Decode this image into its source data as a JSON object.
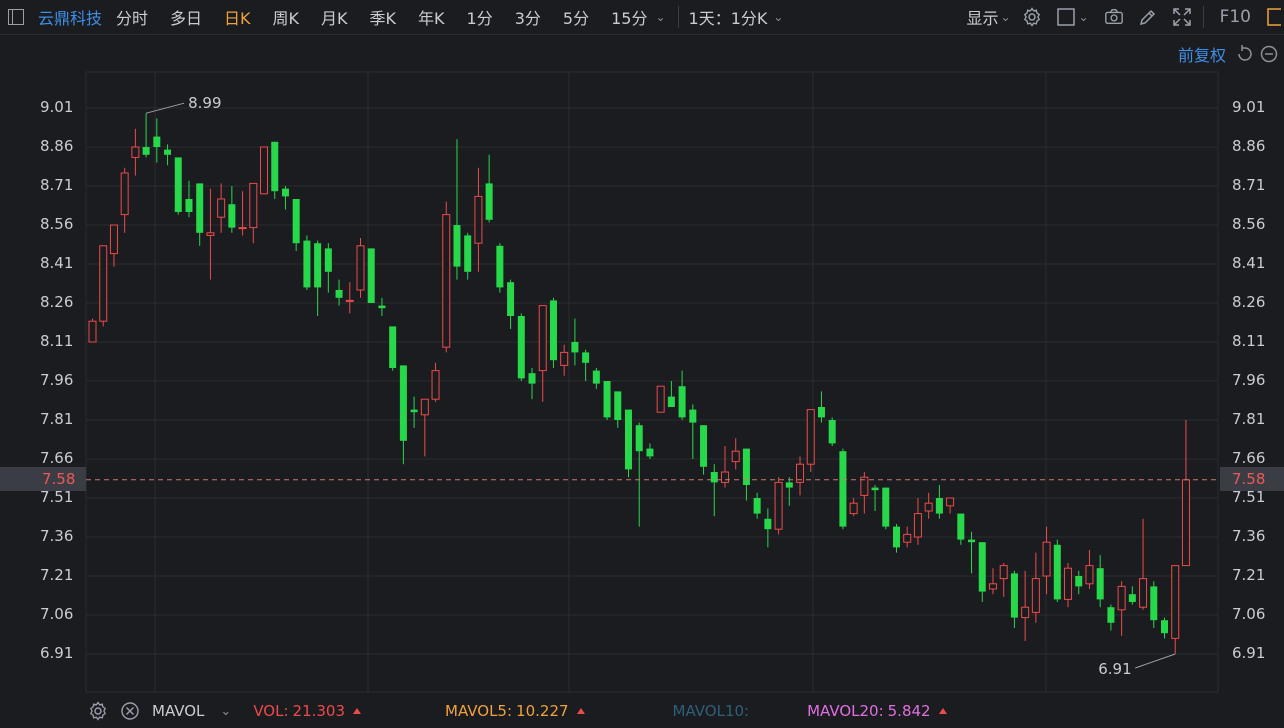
{
  "toolbar": {
    "stock_name": "云鼎科技",
    "periods": [
      "分时",
      "多日",
      "日K",
      "周K",
      "月K",
      "季K",
      "年K",
      "1分",
      "3分",
      "5分",
      "15分"
    ],
    "active_period": "日K",
    "range_select": "1天：1分K",
    "show_label": "显示",
    "f10_label": "F10"
  },
  "adjust_label": "前复权",
  "colors": {
    "up": "#ee4a4a",
    "down": "#27d84b",
    "accent": "#f0a33a",
    "link": "#3d8fe6",
    "background": "#1b1c20"
  },
  "icons": [
    "panel-toggle-icon",
    "chevron-down-icon",
    "gear-icon",
    "square-icon",
    "camera-icon",
    "pencil-icon",
    "fullscreen-icon",
    "reset-icon",
    "zoom-out-icon"
  ],
  "chart_data": {
    "type": "candlestick",
    "ylim": [
      6.855,
      9.095
    ],
    "y_ticks": [
      9.01,
      8.86,
      8.71,
      8.56,
      8.41,
      8.26,
      8.11,
      7.96,
      7.81,
      7.66,
      7.51,
      7.36,
      7.21,
      7.06,
      6.91
    ],
    "y_tick_labels": [
      "9.01",
      "8.86",
      "8.71",
      "8.56",
      "8.41",
      "8.26",
      "8.11",
      "7.96",
      "7.81",
      "7.66",
      "7.51",
      "7.36",
      "7.21",
      "7.06",
      "6.91"
    ],
    "current_price": 7.58,
    "current_price_label": "7.58",
    "high_annotation": {
      "value": 8.99,
      "label": "8.99"
    },
    "low_annotation": {
      "value": 6.91,
      "label": "6.91"
    },
    "candles": [
      [
        8.11,
        8.19,
        8.2,
        8.11
      ],
      [
        8.19,
        8.48,
        8.48,
        8.17
      ],
      [
        8.45,
        8.56,
        8.56,
        8.4
      ],
      [
        8.6,
        8.76,
        8.78,
        8.53
      ],
      [
        8.82,
        8.86,
        8.93,
        8.75
      ],
      [
        8.86,
        8.83,
        8.99,
        8.82
      ],
      [
        8.9,
        8.86,
        8.97,
        8.8
      ],
      [
        8.85,
        8.83,
        8.87,
        8.79
      ],
      [
        8.82,
        8.61,
        8.82,
        8.6
      ],
      [
        8.66,
        8.61,
        8.73,
        8.59
      ],
      [
        8.72,
        8.53,
        8.72,
        8.48
      ],
      [
        8.52,
        8.53,
        8.7,
        8.35
      ],
      [
        8.59,
        8.66,
        8.72,
        8.53
      ],
      [
        8.64,
        8.55,
        8.71,
        8.53
      ],
      [
        8.55,
        8.55,
        8.69,
        8.52
      ],
      [
        8.55,
        8.72,
        8.72,
        8.49
      ],
      [
        8.68,
        8.86,
        8.86,
        8.68
      ],
      [
        8.88,
        8.69,
        8.88,
        8.66
      ],
      [
        8.7,
        8.67,
        8.71,
        8.62
      ],
      [
        8.66,
        8.49,
        8.66,
        8.46
      ],
      [
        8.5,
        8.32,
        8.52,
        8.31
      ],
      [
        8.49,
        8.32,
        8.5,
        8.21
      ],
      [
        8.47,
        8.38,
        8.49,
        8.3
      ],
      [
        8.31,
        8.28,
        8.35,
        8.25
      ],
      [
        8.27,
        8.27,
        8.34,
        8.22
      ],
      [
        8.31,
        8.48,
        8.51,
        8.28
      ],
      [
        8.47,
        8.26,
        8.47,
        8.26
      ],
      [
        8.25,
        8.24,
        8.28,
        8.21
      ],
      [
        8.17,
        8.01,
        8.17,
        8.0
      ],
      [
        8.02,
        7.73,
        8.02,
        7.64
      ],
      [
        7.85,
        7.84,
        7.9,
        7.78
      ],
      [
        7.83,
        7.89,
        7.89,
        7.67
      ],
      [
        7.89,
        8.0,
        8.03,
        7.88
      ],
      [
        8.09,
        8.6,
        8.65,
        8.07
      ],
      [
        8.56,
        8.4,
        8.89,
        8.35
      ],
      [
        8.52,
        8.38,
        8.53,
        8.35
      ],
      [
        8.49,
        8.67,
        8.78,
        8.38
      ],
      [
        8.72,
        8.58,
        8.83,
        8.57
      ],
      [
        8.48,
        8.32,
        8.49,
        8.3
      ],
      [
        8.34,
        8.21,
        8.35,
        8.16
      ],
      [
        8.21,
        7.97,
        8.22,
        7.96
      ],
      [
        7.99,
        7.95,
        8.01,
        7.89
      ],
      [
        8.0,
        8.25,
        8.25,
        7.88
      ],
      [
        8.27,
        8.04,
        8.28,
        8.01
      ],
      [
        8.02,
        8.07,
        8.1,
        7.98
      ],
      [
        8.11,
        8.07,
        8.2,
        8.02
      ],
      [
        8.07,
        8.03,
        8.08,
        7.96
      ],
      [
        8.0,
        7.95,
        8.01,
        7.93
      ],
      [
        7.96,
        7.82,
        7.96,
        7.81
      ],
      [
        7.92,
        7.81,
        7.92,
        7.78
      ],
      [
        7.85,
        7.62,
        7.85,
        7.59
      ],
      [
        7.79,
        7.69,
        7.8,
        7.4
      ],
      [
        7.7,
        7.67,
        7.72,
        7.66
      ],
      [
        7.84,
        7.94,
        7.94,
        7.84
      ],
      [
        7.9,
        7.86,
        7.96,
        7.86
      ],
      [
        7.94,
        7.82,
        8.0,
        7.81
      ],
      [
        7.85,
        7.8,
        7.87,
        7.66
      ],
      [
        7.79,
        7.63,
        7.79,
        7.6
      ],
      [
        7.61,
        7.57,
        7.64,
        7.44
      ],
      [
        7.57,
        7.61,
        7.71,
        7.55
      ],
      [
        7.65,
        7.69,
        7.74,
        7.62
      ],
      [
        7.7,
        7.56,
        7.7,
        7.5
      ],
      [
        7.51,
        7.45,
        7.53,
        7.43
      ],
      [
        7.43,
        7.39,
        7.47,
        7.32
      ],
      [
        7.39,
        7.57,
        7.59,
        7.37
      ],
      [
        7.57,
        7.55,
        7.59,
        7.48
      ],
      [
        7.57,
        7.64,
        7.67,
        7.52
      ],
      [
        7.64,
        7.85,
        7.85,
        7.61
      ],
      [
        7.86,
        7.82,
        7.92,
        7.8
      ],
      [
        7.81,
        7.72,
        7.82,
        7.71
      ],
      [
        7.69,
        7.4,
        7.7,
        7.39
      ],
      [
        7.45,
        7.49,
        7.51,
        7.44
      ],
      [
        7.52,
        7.59,
        7.61,
        7.45
      ],
      [
        7.55,
        7.54,
        7.56,
        7.46
      ],
      [
        7.55,
        7.4,
        7.55,
        7.39
      ],
      [
        7.4,
        7.32,
        7.41,
        7.3
      ],
      [
        7.34,
        7.37,
        7.4,
        7.32
      ],
      [
        7.36,
        7.45,
        7.51,
        7.33
      ],
      [
        7.46,
        7.49,
        7.53,
        7.43
      ],
      [
        7.51,
        7.45,
        7.56,
        7.43
      ],
      [
        7.48,
        7.51,
        7.51,
        7.45
      ],
      [
        7.45,
        7.35,
        7.45,
        7.33
      ],
      [
        7.35,
        7.34,
        7.38,
        7.22
      ],
      [
        7.34,
        7.15,
        7.34,
        7.11
      ],
      [
        7.16,
        7.18,
        7.24,
        7.14
      ],
      [
        7.2,
        7.25,
        7.26,
        7.13
      ],
      [
        7.22,
        7.05,
        7.23,
        7.01
      ],
      [
        7.05,
        7.09,
        7.23,
        6.96
      ],
      [
        7.07,
        7.2,
        7.3,
        7.03
      ],
      [
        7.21,
        7.34,
        7.4,
        7.14
      ],
      [
        7.33,
        7.12,
        7.35,
        7.11
      ],
      [
        7.12,
        7.24,
        7.26,
        7.09
      ],
      [
        7.21,
        7.17,
        7.23,
        7.14
      ],
      [
        7.18,
        7.25,
        7.31,
        7.16
      ],
      [
        7.24,
        7.12,
        7.29,
        7.09
      ],
      [
        7.09,
        7.03,
        7.1,
        7.0
      ],
      [
        7.08,
        7.17,
        7.19,
        6.98
      ],
      [
        7.14,
        7.11,
        7.17,
        7.1
      ],
      [
        7.09,
        7.2,
        7.43,
        7.08
      ],
      [
        7.17,
        7.04,
        7.19,
        7.01
      ],
      [
        7.04,
        6.99,
        7.05,
        6.97
      ],
      [
        6.97,
        7.25,
        7.25,
        6.91
      ],
      [
        7.25,
        7.58,
        7.81,
        7.25
      ]
    ]
  },
  "volume_bar": {
    "indicator": "MAVOL",
    "vol_label": "VOL:",
    "vol_value": "21.303",
    "mavol5_label": "MAVOL5:",
    "mavol5_value": "10.227",
    "mavol10_label": "MAVOL10:",
    "mavol20_label": "MAVOL20:",
    "mavol20_value": "5.842"
  }
}
